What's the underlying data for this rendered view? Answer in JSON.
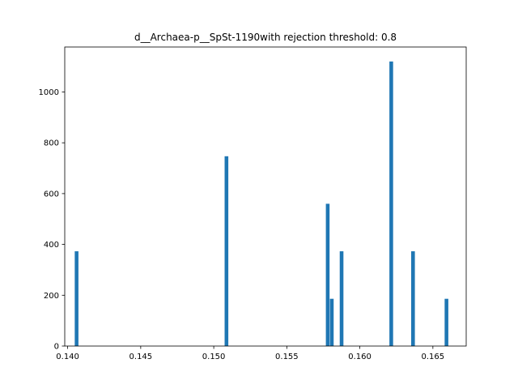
{
  "chart_data": {
    "type": "bar",
    "title": "d__Archaea-p__SpSt-1190with rejection threshold: 0.8",
    "xlabel": "",
    "ylabel": "",
    "xlim": [
      0.1398,
      0.16728
    ],
    "ylim": [
      0,
      1177
    ],
    "bar_width": 0.000253,
    "x": [
      0.14061,
      0.15087,
      0.1578,
      0.15808,
      0.15875,
      0.16215,
      0.16364,
      0.16593
    ],
    "values": [
      373,
      747,
      560,
      186,
      373,
      1120,
      373,
      186
    ],
    "x_ticks": [
      0.14,
      0.145,
      0.15,
      0.155,
      0.16,
      0.165
    ],
    "x_tick_labels": [
      "0.140",
      "0.145",
      "0.150",
      "0.155",
      "0.160",
      "0.165"
    ],
    "y_ticks": [
      0,
      200,
      400,
      600,
      800,
      1000
    ],
    "y_tick_labels": [
      "0",
      "200",
      "400",
      "600",
      "800",
      "1000"
    ],
    "grid": false,
    "legend": "none",
    "bar_color": "#1f77b4"
  }
}
